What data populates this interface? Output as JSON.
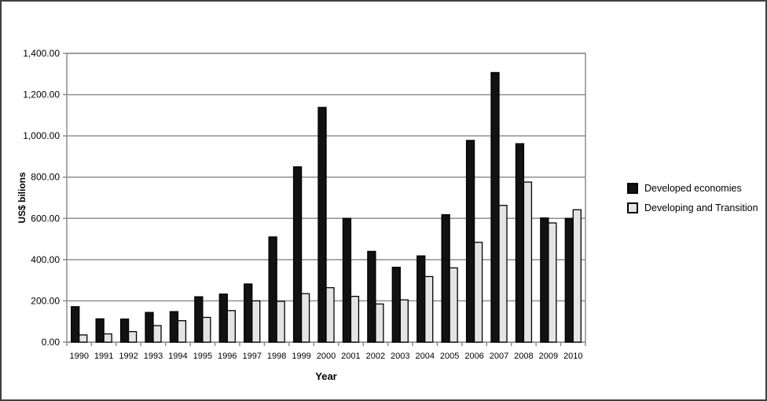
{
  "figure": {
    "background_color": "#ffffff",
    "frame_border_color": "#3f3f3f"
  },
  "chart_data": {
    "type": "bar",
    "title": "",
    "xlabel": "Year",
    "ylabel": "US$ bilions",
    "categories": [
      "1990",
      "1991",
      "1992",
      "1993",
      "1994",
      "1995",
      "1996",
      "1997",
      "1998",
      "1999",
      "2000",
      "2001",
      "2002",
      "2003",
      "2004",
      "2005",
      "2006",
      "2007",
      "2008",
      "2009",
      "2010"
    ],
    "series": [
      {
        "name": "Developed economies",
        "color": "#121212",
        "stroke": "#000000",
        "values": [
          172,
          113,
          112,
          144,
          148,
          220,
          233,
          282,
          510,
          850,
          1138,
          600,
          440,
          363,
          418,
          618,
          978,
          1307,
          962,
          602,
          600
        ]
      },
      {
        "name": "Developing and Transition",
        "color": "#e4e4e4",
        "stroke": "#000000",
        "values": [
          35,
          40,
          51,
          80,
          104,
          120,
          153,
          200,
          198,
          235,
          264,
          222,
          185,
          205,
          318,
          360,
          484,
          663,
          776,
          578,
          642
        ]
      }
    ],
    "ylim": [
      0,
      1400
    ],
    "ytick_step": 200,
    "ytick_labels": [
      "0.00",
      "200.00",
      "400.00",
      "600.00",
      "800.00",
      "1,000.00",
      "1,200.00",
      "1,400.00"
    ],
    "grid": true,
    "gridline_color": "#8e8e8e",
    "axis_color": "#8e8e8e",
    "legend_position": "right"
  }
}
